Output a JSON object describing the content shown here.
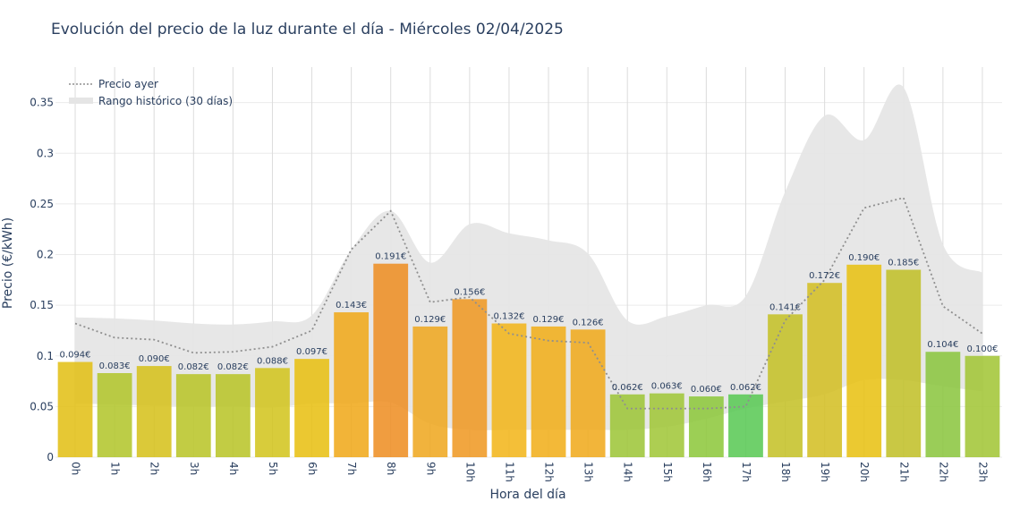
{
  "chart_data": {
    "type": "bar",
    "title": "Evolución del precio de la luz durante el día - Miércoles 02/04/2025",
    "xlabel": "Hora del día",
    "ylabel": "Precio (€/kWh)",
    "ylim": [
      0,
      0.385
    ],
    "yticks": [
      0,
      0.05,
      0.1,
      0.15,
      0.2,
      0.25,
      0.3,
      0.35
    ],
    "ytick_labels": [
      "0",
      "0.05",
      "0.1",
      "0.15",
      "0.2",
      "0.25",
      "0.3",
      "0.35"
    ],
    "categories": [
      "0h",
      "1h",
      "2h",
      "3h",
      "4h",
      "5h",
      "6h",
      "7h",
      "8h",
      "9h",
      "10h",
      "11h",
      "12h",
      "13h",
      "14h",
      "15h",
      "16h",
      "17h",
      "18h",
      "19h",
      "20h",
      "21h",
      "22h",
      "23h"
    ],
    "values": [
      0.094,
      0.083,
      0.09,
      0.082,
      0.082,
      0.088,
      0.097,
      0.143,
      0.191,
      0.129,
      0.156,
      0.132,
      0.129,
      0.126,
      0.062,
      0.063,
      0.06,
      0.062,
      0.141,
      0.172,
      0.19,
      0.185,
      0.104,
      0.1
    ],
    "value_labels": [
      "0.094€",
      "0.083€",
      "0.090€",
      "0.082€",
      "0.082€",
      "0.088€",
      "0.097€",
      "0.143€",
      "0.191€",
      "0.129€",
      "0.156€",
      "0.132€",
      "0.129€",
      "0.126€",
      "0.062€",
      "0.063€",
      "0.060€",
      "0.062€",
      "0.141€",
      "0.172€",
      "0.190€",
      "0.185€",
      "0.104€",
      "0.100€"
    ],
    "bar_colors": [
      "#e2c018",
      "#b3c62d",
      "#d6c21e",
      "#bac52a",
      "#bac52a",
      "#d3c520",
      "#e8c014",
      "#f0aa1c",
      "#ee8f26",
      "#efa922",
      "#ef9a25",
      "#f2b61c",
      "#f1af1d",
      "#f0ab1f",
      "#9ec63a",
      "#a2c73a",
      "#8ec83e",
      "#5bc956",
      "#c5c129",
      "#d4bf26",
      "#e8c114",
      "#c2c02a",
      "#8cc641",
      "#a3c638"
    ],
    "series": [
      {
        "name": "Precio ayer",
        "type": "line",
        "style": "dotted",
        "color": "#8f8f8f",
        "values": [
          0.132,
          0.118,
          0.116,
          0.103,
          0.104,
          0.109,
          0.125,
          0.205,
          0.243,
          0.153,
          0.158,
          0.122,
          0.115,
          0.113,
          0.048,
          0.048,
          0.048,
          0.05,
          0.135,
          0.175,
          0.246,
          0.256,
          0.149,
          0.122
        ]
      },
      {
        "name": "Rango histórico (30 días)",
        "type": "band",
        "color": "#e5e5e5",
        "upper": [
          0.138,
          0.137,
          0.135,
          0.132,
          0.131,
          0.134,
          0.14,
          0.205,
          0.243,
          0.192,
          0.23,
          0.221,
          0.214,
          0.201,
          0.135,
          0.139,
          0.15,
          0.159,
          0.262,
          0.337,
          0.313,
          0.365,
          0.21,
          0.182
        ],
        "lower": [
          0.053,
          0.052,
          0.051,
          0.05,
          0.05,
          0.049,
          0.053,
          0.053,
          0.054,
          0.033,
          0.027,
          0.027,
          0.027,
          0.027,
          0.027,
          0.03,
          0.038,
          0.048,
          0.055,
          0.062,
          0.076,
          0.076,
          0.07,
          0.065
        ]
      }
    ],
    "legend": {
      "position": "top-left",
      "entries": [
        "Precio ayer",
        "Rango histórico (30 días)"
      ]
    },
    "grid": true
  }
}
